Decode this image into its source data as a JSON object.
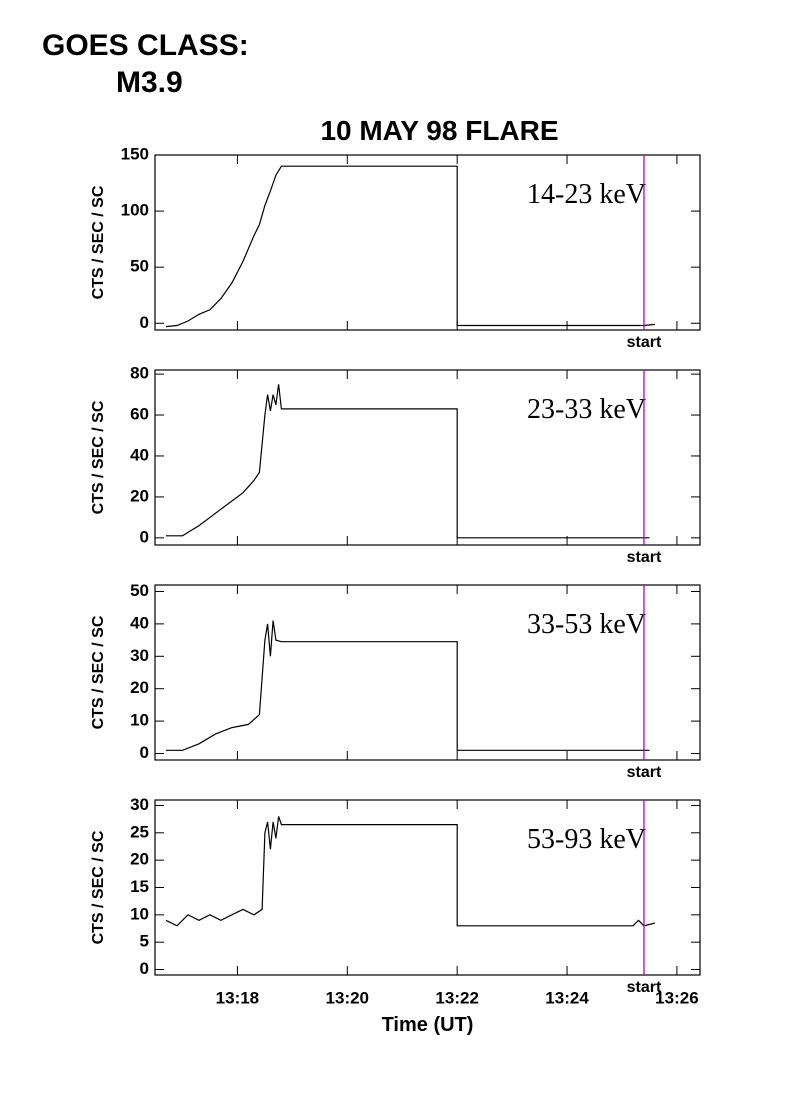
{
  "header": {
    "goes_label": "GOES CLASS:",
    "goes_class": "M3.9"
  },
  "chart_data": [
    {
      "type": "line",
      "title": "10 MAY 98 FLARE",
      "ylabel": "CTS / SEC / SC",
      "label": "14-23 keV",
      "color": "#000000",
      "xlim": [
        16.5,
        26.42
      ],
      "xticks": [
        18,
        20,
        22,
        24,
        26
      ],
      "ylim": [
        -6,
        150
      ],
      "yticks": [
        0,
        50,
        100,
        150
      ],
      "x": [
        16.7,
        16.9,
        17.1,
        17.3,
        17.5,
        17.7,
        17.9,
        18.1,
        18.3,
        18.4,
        18.5,
        18.6,
        18.7,
        18.8,
        22.0,
        22.0,
        25.4,
        25.6
      ],
      "values": [
        -3,
        -2,
        2,
        8,
        12,
        22,
        36,
        55,
        78,
        88,
        105,
        118,
        132,
        140,
        140,
        -2,
        -2,
        -1
      ],
      "marker_x": 25.4,
      "marker_label": "start",
      "marker_color": "#c000c0"
    },
    {
      "type": "line",
      "ylabel": "CTS / SEC / SC",
      "label": "23-33 keV",
      "color": "#000000",
      "xlim": [
        16.5,
        26.42
      ],
      "xticks": [
        18,
        20,
        22,
        24,
        26
      ],
      "ylim": [
        -3.5,
        82
      ],
      "yticks": [
        0,
        20,
        40,
        60,
        80
      ],
      "x": [
        16.7,
        17.0,
        17.3,
        17.6,
        17.9,
        18.1,
        18.2,
        18.3,
        18.4,
        18.5,
        18.55,
        18.6,
        18.65,
        18.7,
        18.75,
        18.8,
        22.0,
        22.0,
        25.5
      ],
      "values": [
        1,
        1,
        6,
        12,
        18,
        22,
        25,
        28,
        32,
        60,
        70,
        62,
        70,
        65,
        75,
        63,
        63,
        0,
        0
      ],
      "marker_x": 25.4,
      "marker_label": "start",
      "marker_color": "#c000c0"
    },
    {
      "type": "line",
      "ylabel": "CTS / SEC / SC",
      "label": "33-53 keV",
      "color": "#000000",
      "xlim": [
        16.5,
        26.42
      ],
      "xticks": [
        18,
        20,
        22,
        24,
        26
      ],
      "ylim": [
        -2,
        52
      ],
      "yticks": [
        0,
        10,
        20,
        30,
        40,
        50
      ],
      "x": [
        16.7,
        17.0,
        17.3,
        17.6,
        17.9,
        18.2,
        18.4,
        18.5,
        18.55,
        18.6,
        18.65,
        18.7,
        18.8,
        22.0,
        22.0,
        25.5
      ],
      "values": [
        1,
        1,
        3,
        6,
        8,
        9,
        12,
        35,
        40,
        30,
        41,
        35,
        34.5,
        34.5,
        1,
        1
      ],
      "marker_x": 25.4,
      "marker_label": "start",
      "marker_color": "#c000c0"
    },
    {
      "type": "line",
      "ylabel": "CTS / SEC / SC",
      "xlabel": "Time (UT)",
      "label": "53-93 keV",
      "color": "#000000",
      "xlim": [
        16.5,
        26.42
      ],
      "xticks": [
        {
          "value": 18,
          "label": "13:18"
        },
        {
          "value": 20,
          "label": "13:20"
        },
        {
          "value": 22,
          "label": "13:22"
        },
        {
          "value": 24,
          "label": "13:24"
        },
        {
          "value": 26,
          "label": "13:26"
        }
      ],
      "ylim": [
        -1,
        31
      ],
      "yticks": [
        0,
        5,
        10,
        15,
        20,
        25,
        30
      ],
      "x": [
        16.7,
        16.9,
        17.1,
        17.3,
        17.5,
        17.7,
        17.9,
        18.1,
        18.3,
        18.45,
        18.5,
        18.55,
        18.6,
        18.65,
        18.7,
        18.75,
        18.8,
        22.0,
        22.0,
        25.2,
        25.3,
        25.4,
        25.6
      ],
      "values": [
        9,
        8,
        10,
        9,
        10,
        9,
        10,
        11,
        10,
        11,
        25,
        27,
        22,
        27,
        24,
        28,
        26.5,
        26.5,
        8,
        8,
        9,
        8,
        8.5
      ],
      "marker_x": 25.4,
      "marker_label": "start",
      "marker_color": "#c000c0"
    }
  ]
}
